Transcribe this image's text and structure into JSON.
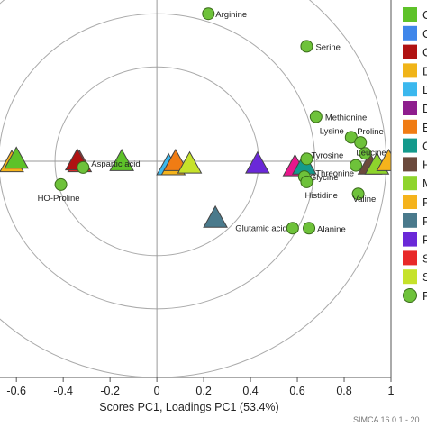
{
  "chart_data": {
    "type": "scatter",
    "xlabel": "Scores PC1, Loadings PC1 (53.4%)",
    "xlim": [
      -0.67,
      1.0
    ],
    "ylim": [
      -0.63,
      0.47
    ],
    "x_ticks": [
      -0.6,
      -0.4,
      -0.2,
      0,
      0.2,
      0.4,
      0.6,
      0.8,
      1
    ],
    "x_tick_labels": [
      "-0.6",
      "-0.4",
      "-0.2",
      "0",
      "0.2",
      "0.4",
      "0.6",
      "0.8",
      "1"
    ],
    "ellipses": [
      {
        "rx": 0.98,
        "ry": 0.63
      },
      {
        "rx": 0.675,
        "ry": 0.43
      },
      {
        "rx": 0.435,
        "ry": 0.275
      }
    ],
    "legend_position": "right",
    "legend_items": [
      {
        "label": "C",
        "color": "#5ec229",
        "marker": "square"
      },
      {
        "label": "C",
        "color": "#3f86ea",
        "marker": "square"
      },
      {
        "label": "C",
        "color": "#b01212",
        "marker": "square"
      },
      {
        "label": "D",
        "color": "#f0b418",
        "marker": "square"
      },
      {
        "label": "D",
        "color": "#3bb8ee",
        "marker": "square"
      },
      {
        "label": "D",
        "color": "#8e1e8e",
        "marker": "square"
      },
      {
        "label": "E",
        "color": "#f07c14",
        "marker": "square"
      },
      {
        "label": "C",
        "color": "#149a8c",
        "marker": "square"
      },
      {
        "label": "H",
        "color": "#6b4a3c",
        "marker": "square"
      },
      {
        "label": "M",
        "color": "#8ed42c",
        "marker": "square"
      },
      {
        "label": "P",
        "color": "#f5b31c",
        "marker": "square"
      },
      {
        "label": "P",
        "color": "#4a7a8c",
        "marker": "square"
      },
      {
        "label": "P",
        "color": "#6a28d8",
        "marker": "square"
      },
      {
        "label": "S",
        "color": "#e82828",
        "marker": "square"
      },
      {
        "label": "S",
        "color": "#c6e22a",
        "marker": "square"
      },
      {
        "label": "P",
        "color": "#6ec23a",
        "marker": "circle"
      }
    ],
    "loadings": [
      {
        "label": "Arginine",
        "x": 0.22,
        "y": 0.43
      },
      {
        "label": "Serine",
        "x": 0.64,
        "y": 0.335
      },
      {
        "label": "Methionine",
        "x": 0.68,
        "y": 0.13
      },
      {
        "label": "Lysine",
        "x": 0.83,
        "y": 0.07
      },
      {
        "label": "Proline",
        "x": 0.87,
        "y": 0.055
      },
      {
        "label": "Leucine",
        "x": 0.89,
        "y": 0.023
      },
      {
        "label": "Tyrosine",
        "x": 0.64,
        "y": 0.007
      },
      {
        "label": "Threonine",
        "x": 0.85,
        "y": -0.012
      },
      {
        "label": "Glycine",
        "x": 0.63,
        "y": -0.045
      },
      {
        "label": "Histidine",
        "x": 0.64,
        "y": -0.06
      },
      {
        "label": "Valine",
        "x": 0.86,
        "y": -0.095
      },
      {
        "label": "Glutamic acid",
        "x": 0.58,
        "y": -0.195
      },
      {
        "label": "Alanine",
        "x": 0.65,
        "y": -0.195
      },
      {
        "label": "Aspartic acid",
        "x": -0.315,
        "y": -0.018
      },
      {
        "label": "HO-Proline",
        "x": -0.41,
        "y": -0.068
      }
    ],
    "scores": [
      {
        "x": -0.62,
        "y": -0.003,
        "color": "#f5b31c"
      },
      {
        "x": -0.6,
        "y": 0.007,
        "color": "#5ec229"
      },
      {
        "x": -0.33,
        "y": -0.003,
        "color": "#e82828"
      },
      {
        "x": -0.34,
        "y": 0.002,
        "color": "#b01212"
      },
      {
        "x": -0.15,
        "y": 0.0,
        "color": "#5ec229"
      },
      {
        "x": 0.05,
        "y": -0.012,
        "color": "#3bb8ee"
      },
      {
        "x": 0.07,
        "y": -0.012,
        "color": "#f5b31c"
      },
      {
        "x": 0.08,
        "y": 0.0,
        "color": "#f07c14"
      },
      {
        "x": 0.14,
        "y": -0.007,
        "color": "#c6e22a"
      },
      {
        "x": 0.43,
        "y": -0.007,
        "color": "#6a28d8"
      },
      {
        "x": 0.59,
        "y": -0.015,
        "color": "#e8168c"
      },
      {
        "x": 0.63,
        "y": -0.01,
        "color": "#149a8c"
      },
      {
        "x": 0.25,
        "y": -0.165,
        "color": "#4a7a8c"
      },
      {
        "x": 0.91,
        "y": -0.01,
        "color": "#6b4a3c"
      },
      {
        "x": 0.94,
        "y": -0.01,
        "color": "#8ed42c"
      },
      {
        "x": 0.99,
        "y": 0.0,
        "color": "#f5b31c"
      }
    ]
  },
  "footer_text": "SIMCA 16.0.1 - 20"
}
